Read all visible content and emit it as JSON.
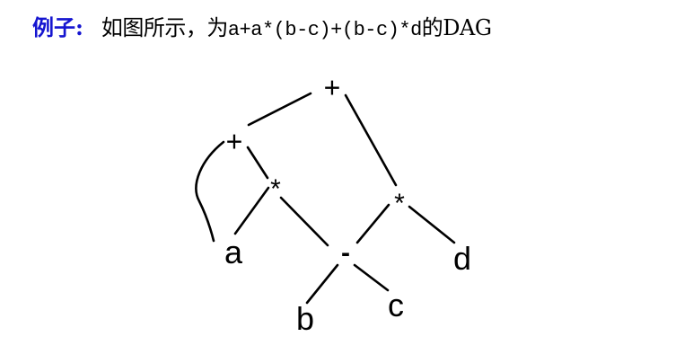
{
  "heading": {
    "label": "例子:",
    "description": "如图所示，为",
    "expression": "a+a*(b-c)+(b-c)*d",
    "suffix": "的DAG"
  },
  "dag": {
    "nodes": [
      {
        "id": "plus_root",
        "label": "+"
      },
      {
        "id": "plus_left",
        "label": "+"
      },
      {
        "id": "mul_left",
        "label": "*"
      },
      {
        "id": "mul_right",
        "label": "*"
      },
      {
        "id": "a",
        "label": "a"
      },
      {
        "id": "minus",
        "label": "-"
      },
      {
        "id": "d",
        "label": "d"
      },
      {
        "id": "b",
        "label": "b"
      },
      {
        "id": "c",
        "label": "c"
      }
    ],
    "edges": [
      {
        "from": "plus_root",
        "to": "plus_left"
      },
      {
        "from": "plus_root",
        "to": "mul_right"
      },
      {
        "from": "plus_left",
        "to": "a"
      },
      {
        "from": "plus_left",
        "to": "mul_left"
      },
      {
        "from": "mul_left",
        "to": "a"
      },
      {
        "from": "mul_left",
        "to": "minus"
      },
      {
        "from": "mul_right",
        "to": "minus"
      },
      {
        "from": "mul_right",
        "to": "d"
      },
      {
        "from": "minus",
        "to": "b"
      },
      {
        "from": "minus",
        "to": "c"
      }
    ]
  }
}
